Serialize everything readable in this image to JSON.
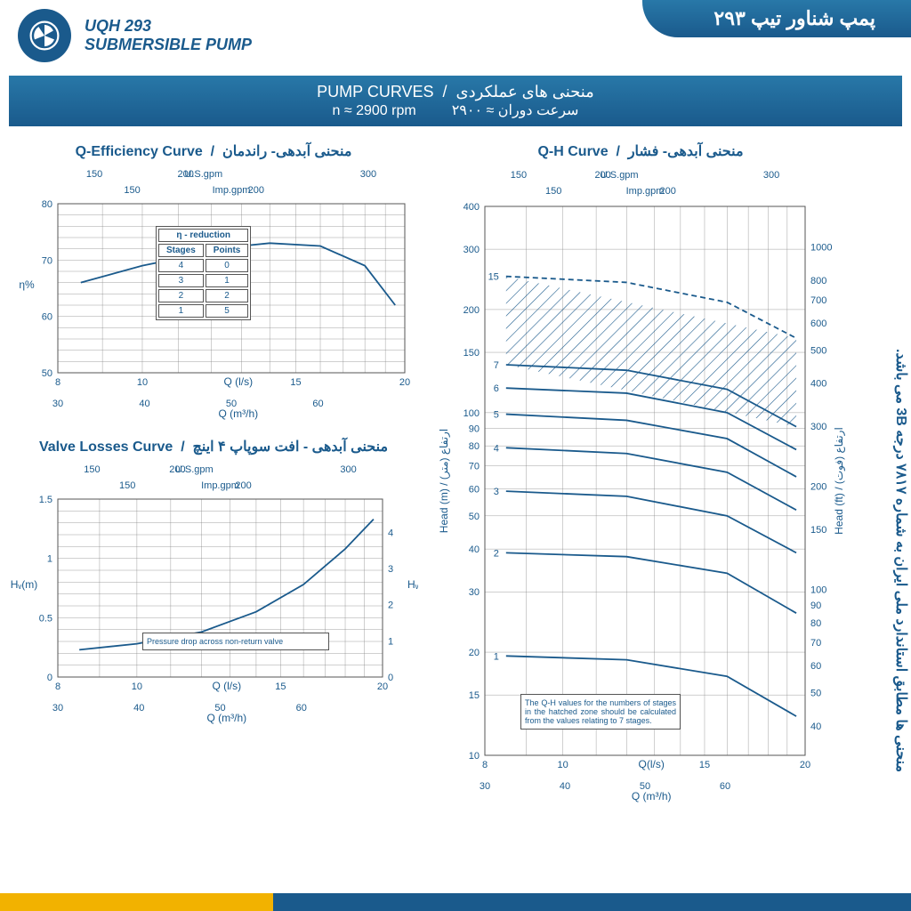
{
  "header": {
    "model": "UQH 293",
    "subtitle": "SUBMERSIBLE PUMP",
    "title_fa": "پمپ شناور تیپ ۲۹۳"
  },
  "banner": {
    "row1_en": "PUMP CURVES",
    "row1_fa": "منحنی های عملکردی",
    "row2_en": "n ≈ 2900 rpm",
    "row2_fa": "سرعت دوران ≈ ۲۹۰۰"
  },
  "side_note": "منحنی ها مطابق استاندارد ملی ایران به شماره ۷۸۱۷ درجه 3B می باشد.",
  "eff_chart": {
    "title_en": "Q-Efficiency Curve",
    "title_fa": "منحنی آبدهی- راندمان",
    "xlabel_ls": "Q (l/s)",
    "xlabel_m3h": "Q (m³/h)",
    "ylabel": "η%",
    "x_ls": [
      8,
      10,
      15,
      20
    ],
    "x_m3h": [
      30,
      40,
      50,
      60
    ],
    "us_gpm": [
      150,
      200,
      300
    ],
    "imp_gpm": [
      150,
      200
    ],
    "y_ticks": [
      50,
      60,
      70,
      80
    ],
    "curve_x": [
      8.5,
      10,
      12,
      13,
      14,
      16,
      18,
      19.5
    ],
    "curve_y": [
      66,
      69,
      71.5,
      72.5,
      73,
      72.5,
      69,
      62
    ],
    "reduction": {
      "title": "η - reduction",
      "cols": [
        "Stages",
        "Points"
      ],
      "rows": [
        [
          "4",
          "0"
        ],
        [
          "3",
          "1"
        ],
        [
          "2",
          "2"
        ],
        [
          "1",
          "5"
        ]
      ]
    },
    "colors": {
      "curve": "#1a5a8c",
      "grid": "#999999"
    }
  },
  "valve_chart": {
    "title_en": "Valve Losses Curve",
    "title_fa": "منحنی آبدهی - افت سوپاپ ۴ اینچ",
    "xlabel_ls": "Q (l/s)",
    "xlabel_m3h": "Q (m³/h)",
    "y_left": "Hᵥ(m)",
    "y_right": "Hᵥ(ft)",
    "x_ls": [
      8,
      10,
      15,
      20
    ],
    "x_m3h": [
      30,
      40,
      50,
      60
    ],
    "us_gpm": [
      150,
      200,
      300
    ],
    "imp_gpm": [
      150,
      200
    ],
    "y_m": [
      0,
      0.5,
      1.0,
      1.5
    ],
    "y_ft": [
      0,
      1,
      2,
      3,
      4
    ],
    "curve_x": [
      8.5,
      10,
      12,
      14,
      16,
      18,
      19.5
    ],
    "curve_y": [
      0.23,
      0.28,
      0.38,
      0.55,
      0.78,
      1.08,
      1.33
    ],
    "note": "Pressure drop across non-return valve"
  },
  "qh_chart": {
    "title_en": "Q-H Curve",
    "title_fa": "منحنی آبدهی- فشار",
    "xlabel_ls": "Q(l/s)",
    "xlabel_m3h": "Q (m³/h)",
    "y_left": "Head (m)  /  ارتفاع (متر)",
    "y_right": "Head (ft)  /  (فوت) ارتفاع",
    "x_ls": [
      8,
      10,
      15,
      20
    ],
    "x_m3h": [
      30,
      40,
      50,
      60
    ],
    "us_gpm": [
      150,
      200,
      300
    ],
    "imp_gpm": [
      150,
      200
    ],
    "y_m": [
      10,
      15,
      20,
      30,
      40,
      50,
      60,
      70,
      80,
      90,
      100,
      150,
      200,
      300,
      400
    ],
    "y_ft": [
      40,
      50,
      60,
      70,
      80,
      90,
      100,
      150,
      200,
      300,
      400,
      500,
      600,
      700,
      800,
      1000
    ],
    "curves": [
      {
        "label": "1",
        "x": [
          8.5,
          12,
          16,
          19.5
        ],
        "y": [
          19.5,
          19,
          17,
          13
        ]
      },
      {
        "label": "2",
        "x": [
          8.5,
          12,
          16,
          19.5
        ],
        "y": [
          39,
          38,
          34,
          26
        ]
      },
      {
        "label": "3",
        "x": [
          8.5,
          12,
          16,
          19.5
        ],
        "y": [
          59,
          57,
          50,
          39
        ]
      },
      {
        "label": "4",
        "x": [
          8.5,
          12,
          16,
          19.5
        ],
        "y": [
          79,
          76,
          67,
          52
        ]
      },
      {
        "label": "5",
        "x": [
          8.5,
          12,
          16,
          19.5
        ],
        "y": [
          99,
          95,
          84,
          65
        ]
      },
      {
        "label": "6",
        "x": [
          8.5,
          12,
          16,
          19.5
        ],
        "y": [
          118,
          114,
          100,
          78
        ]
      },
      {
        "label": "7",
        "x": [
          8.5,
          12,
          16,
          19.5
        ],
        "y": [
          138,
          133,
          117,
          91
        ]
      },
      {
        "label": "15",
        "x": [
          8.5,
          12,
          16,
          19.5
        ],
        "y": [
          250,
          240,
          210,
          165
        ],
        "dashed": true
      }
    ],
    "hatch": {
      "x": [
        8.5,
        19.5,
        19.5,
        8.5
      ],
      "y": [
        250,
        165,
        91,
        138
      ]
    },
    "note": "The Q-H values for the numbers of stages in the hatched zone should be calculated from the values relating to 7 stages."
  }
}
